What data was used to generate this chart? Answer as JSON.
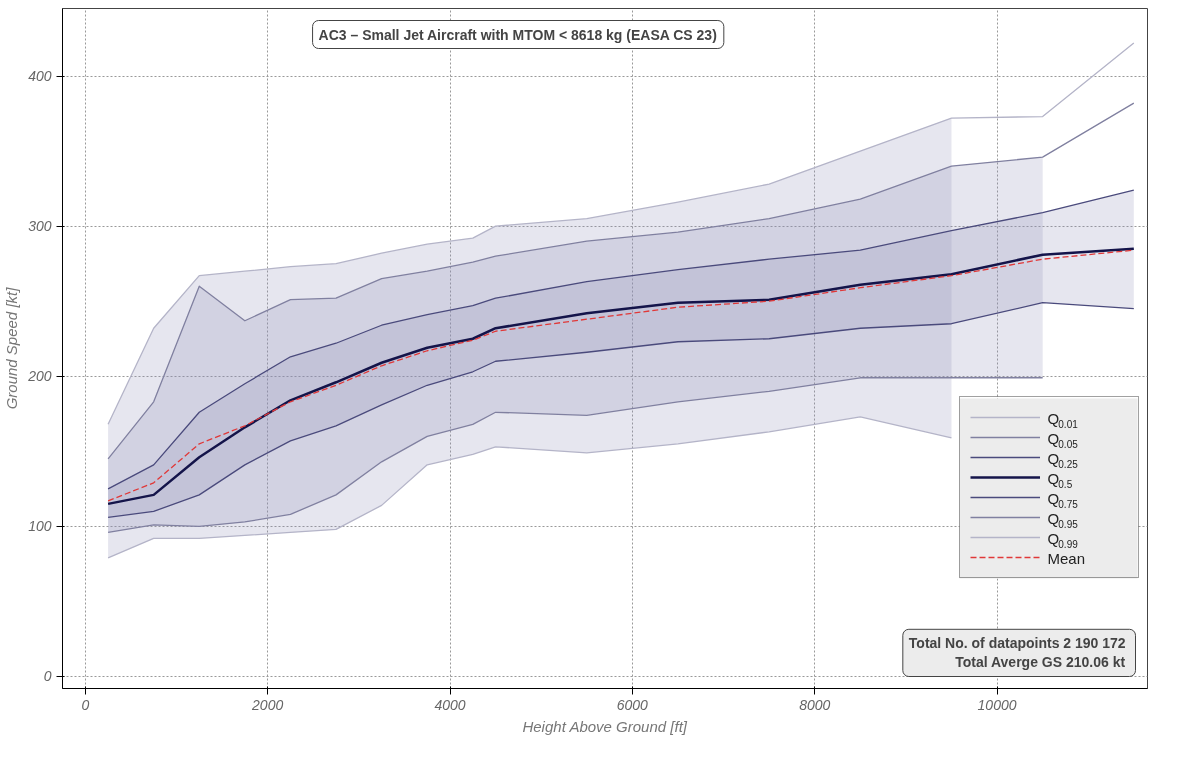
{
  "chart_data": {
    "type": "line",
    "title": "AC3 – Small Jet Aircraft with MTOM < 8618 kg (EASA CS 23)",
    "xlabel": "Height Above Ground [ft]",
    "ylabel": "Ground Speed [kt]",
    "x": [
      250,
      750,
      1250,
      1750,
      2250,
      2750,
      3250,
      3750,
      4250,
      4500,
      5500,
      6500,
      7500,
      8500,
      9500,
      10500,
      11500
    ],
    "series": [
      {
        "name": "Q$_{0.01}$",
        "color": "#b4b4c8",
        "values": [
          79,
          92,
          92,
          94,
          96,
          98,
          114,
          141,
          148,
          153,
          149,
          155,
          163,
          173,
          159,
          null,
          null
        ]
      },
      {
        "name": "Q$_{0.05}$",
        "color": "#8080a0",
        "values": [
          96,
          101,
          100,
          103,
          108,
          121,
          143,
          160,
          168,
          176,
          174,
          183,
          190,
          199,
          199,
          199,
          null
        ]
      },
      {
        "name": "Q$_{0.25}$",
        "color": "#4a4a7c",
        "values": [
          106,
          110,
          121,
          141,
          157,
          167,
          181,
          194,
          203,
          210,
          216,
          223,
          225,
          232,
          235,
          249,
          245
        ]
      },
      {
        "name": "Q$_{0.5}$",
        "color": "#14144a",
        "values": [
          115,
          121,
          146,
          166,
          184,
          196,
          209,
          219,
          225,
          232,
          242,
          249,
          251,
          261,
          268,
          281,
          285
        ]
      },
      {
        "name": "Q$_{0.75}$",
        "color": "#4a4a7c",
        "values": [
          125,
          141,
          176,
          195,
          213,
          222,
          234,
          241,
          247,
          252,
          263,
          271,
          278,
          284,
          297,
          309,
          324
        ],
        "lower": [
          106,
          110,
          121,
          141,
          157,
          167,
          181,
          194,
          203,
          210,
          216,
          223,
          225,
          232,
          235,
          249,
          245
        ],
        "upper": [
          125,
          141,
          176,
          195,
          213,
          222,
          234,
          241,
          247,
          252,
          263,
          271,
          278,
          284,
          297,
          309,
          324
        ]
      },
      {
        "name": "Q$_{0.95}$",
        "color": "#8080a0",
        "values": [
          145,
          183,
          260,
          237,
          251,
          252,
          265,
          270,
          276,
          280,
          290,
          296,
          305,
          318,
          340,
          346,
          382
        ],
        "lower": [
          96,
          101,
          100,
          103,
          108,
          121,
          143,
          160,
          168,
          176,
          174,
          183,
          190,
          199,
          199,
          199,
          null
        ],
        "upper": [
          145,
          183,
          260,
          237,
          251,
          252,
          265,
          270,
          276,
          280,
          290,
          296,
          305,
          318,
          340,
          346,
          null
        ]
      },
      {
        "name": "Q$_{0.99}$",
        "color": "#b4b4c8",
        "values": [
          168,
          232,
          267,
          270,
          273,
          275,
          282,
          288,
          292,
          300,
          305,
          316,
          328,
          350,
          372,
          373,
          422
        ],
        "lower": [
          79,
          92,
          92,
          94,
          96,
          98,
          114,
          141,
          148,
          153,
          149,
          155,
          163,
          173,
          159,
          null,
          null
        ],
        "upper": [
          168,
          232,
          267,
          270,
          273,
          275,
          282,
          288,
          292,
          300,
          305,
          316,
          328,
          350,
          372,
          null,
          null
        ]
      },
      {
        "name": "Mean",
        "color": "#e03838",
        "line_style": "dashed",
        "values": [
          117,
          129,
          155,
          167,
          183,
          194,
          207,
          217,
          224,
          230,
          238,
          246,
          250,
          259,
          267,
          278,
          284
        ]
      }
    ],
    "xlim": [
      -250,
      11650
    ],
    "ylim": [
      -8,
      445
    ],
    "xticks": [
      0,
      2000,
      4000,
      6000,
      8000,
      10000
    ],
    "yticks": [
      0,
      100,
      200,
      300,
      400
    ],
    "grid": true,
    "legend": "right",
    "annotations": [
      "Total No. of datapoints  2 190 172",
      "Total Averge GS  210.06 kt"
    ]
  }
}
